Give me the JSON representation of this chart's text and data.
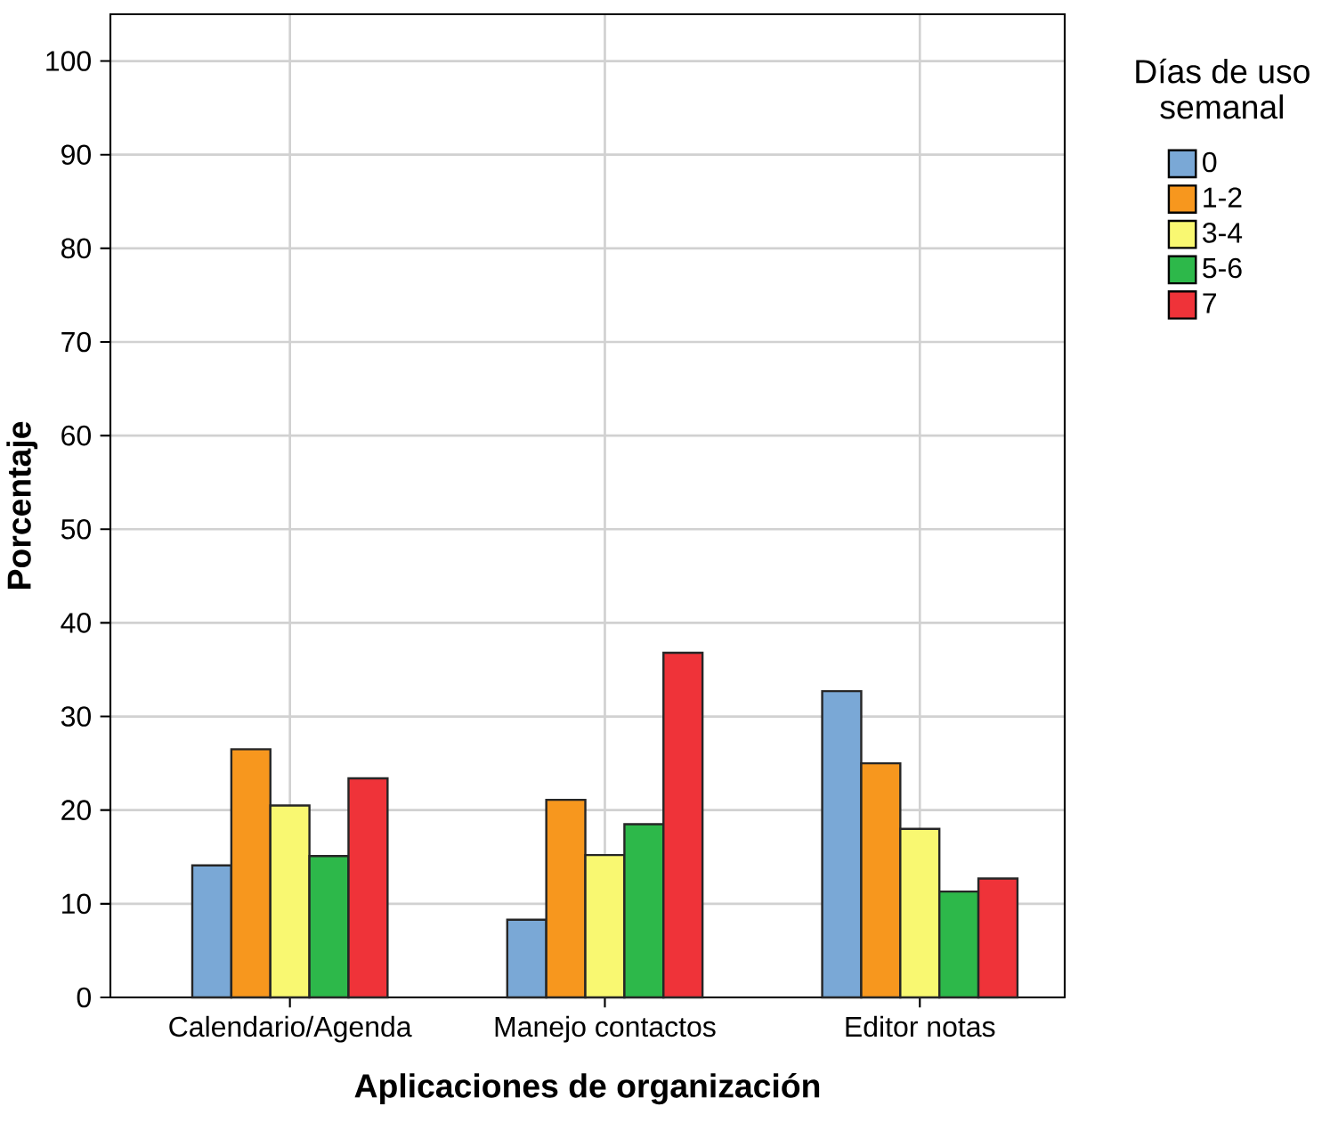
{
  "chart_data": {
    "type": "bar",
    "xlabel": "Aplicaciones de organización",
    "ylabel": "Porcentaje",
    "legend_title": "Días de uso semanal",
    "categories": [
      "Calendario/Agenda",
      "Manejo contactos",
      "Editor notas"
    ],
    "series": [
      {
        "name": "0",
        "color": "#7aa8d6",
        "values": [
          14.1,
          8.3,
          32.7
        ]
      },
      {
        "name": "1-2",
        "color": "#f7971e",
        "values": [
          26.5,
          21.1,
          25.0
        ]
      },
      {
        "name": "3-4",
        "color": "#f9f871",
        "values": [
          20.5,
          15.2,
          18.0
        ]
      },
      {
        "name": "5-6",
        "color": "#2db84a",
        "values": [
          15.1,
          18.5,
          11.3
        ]
      },
      {
        "name": "7",
        "color": "#ef3339",
        "values": [
          23.4,
          36.8,
          12.7
        ]
      }
    ],
    "ylim": [
      0,
      105
    ],
    "yticks": [
      0,
      10,
      20,
      30,
      40,
      50,
      60,
      70,
      80,
      90,
      100
    ],
    "grid": true,
    "legend": "right"
  }
}
